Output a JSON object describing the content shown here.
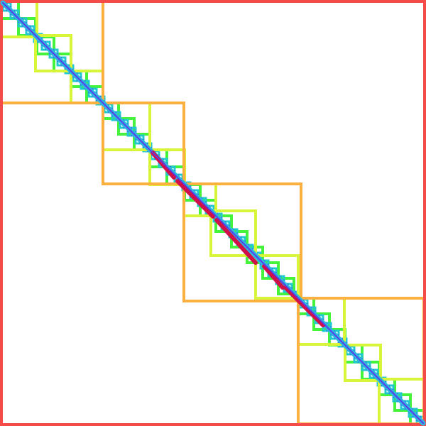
{
  "diagram": {
    "type": "hierarchical-block-diagonal-matrix",
    "description_label": "",
    "levels": [
      {
        "level": 0,
        "name": "root",
        "color": "#f44a48"
      },
      {
        "level": 1,
        "name": "level-1",
        "color": "#fbb040"
      },
      {
        "level": 2,
        "name": "level-2",
        "color": "#d9f53a"
      },
      {
        "level": 3,
        "name": "level-3",
        "color": "#45f23c"
      },
      {
        "level": 4,
        "name": "level-4",
        "color": "#20c8d0"
      },
      {
        "level": 5,
        "name": "level-5",
        "color": "#4e3cf0"
      }
    ],
    "diagonal_colors": {
      "line": "#5a3ce8",
      "band": "#2ab8e0",
      "dense": "#d01048"
    }
  }
}
